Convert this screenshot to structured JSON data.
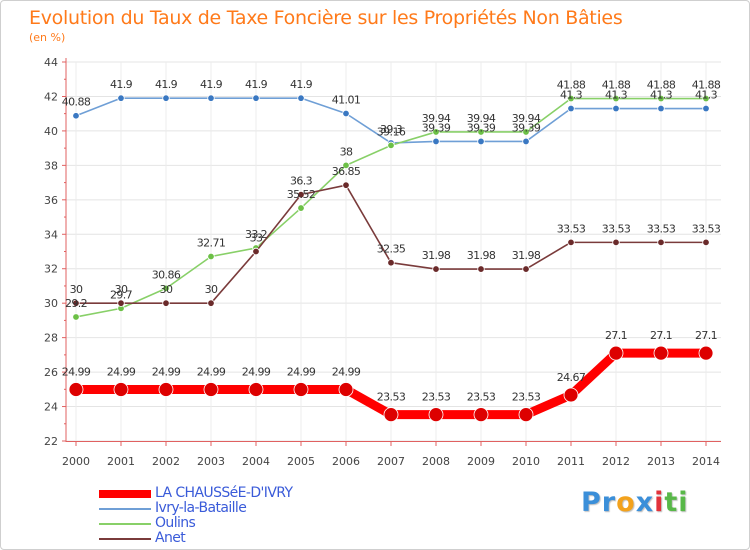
{
  "title": "Evolution du Taux de Taxe Foncière sur les Propriétés Non Bâties",
  "unit_label": "(en %)",
  "brand": {
    "letters": [
      "P",
      "r",
      "o",
      "x",
      "i",
      "t",
      "i"
    ],
    "colors": [
      "#3b8fd9",
      "#3b8fd9",
      "#f3a21c",
      "#3b8fd9",
      "#e2323a",
      "#58b848",
      "#58b848"
    ]
  },
  "chart_data": {
    "type": "line",
    "title": "Evolution du Taux de Taxe Foncière sur les Propriétés Non Bâties",
    "ylabel": "(en %)",
    "xlabel": "",
    "ylim": [
      22,
      44
    ],
    "yticks": [
      22,
      24,
      26,
      28,
      30,
      32,
      34,
      36,
      38,
      40,
      42,
      44
    ],
    "grid": true,
    "categories": [
      "2000",
      "2001",
      "2002",
      "2003",
      "2004",
      "2005",
      "2006",
      "2007",
      "2008",
      "2009",
      "2010",
      "2011",
      "2012",
      "2013",
      "2014"
    ],
    "series": [
      {
        "name": "LA CHAUSSéE-D'IVRY",
        "color": "#ff0000",
        "marker_color": "#dd0000",
        "emphasis": true,
        "values": [
          24.99,
          24.99,
          24.99,
          24.99,
          24.99,
          24.99,
          24.99,
          23.53,
          23.53,
          23.53,
          23.53,
          24.67,
          27.1,
          27.1,
          27.1
        ],
        "labels": [
          "24.99",
          "24.99",
          "24.99",
          "24.99",
          "24.99",
          "24.99",
          "24.99",
          "23.53",
          "23.53",
          "23.53",
          "23.53",
          "24.67",
          "27.1",
          "27.1",
          "27.1"
        ]
      },
      {
        "name": "Ivry-la-Bataille",
        "color": "#6f9fd6",
        "marker_color": "#3a78c2",
        "values": [
          40.88,
          41.9,
          41.9,
          41.9,
          41.9,
          41.9,
          41.01,
          39.3,
          39.39,
          39.39,
          39.39,
          41.3,
          41.3,
          41.3,
          41.3
        ],
        "labels": [
          "40.88",
          "41.9",
          "41.9",
          "41.9",
          "41.9",
          "41.9",
          "41.01",
          "39.3",
          "39.39",
          "39.39",
          "39.39",
          "41.3",
          "41.3",
          "41.3",
          "41.3"
        ]
      },
      {
        "name": "Oulins",
        "color": "#88d068",
        "marker_color": "#6cc046",
        "values": [
          29.2,
          29.7,
          30.86,
          32.71,
          33.2,
          35.52,
          38,
          39.16,
          39.94,
          39.94,
          39.94,
          41.88,
          41.88,
          41.88,
          41.88
        ],
        "labels": [
          "29.2",
          "29.7",
          "30.86",
          "32.71",
          "33.2",
          "35.52",
          "38",
          "39.16",
          "39.94",
          "39.94",
          "39.94",
          "41.88",
          "41.88",
          "41.88",
          "41.88"
        ]
      },
      {
        "name": "Anet",
        "color": "#7a3b3b",
        "marker_color": "#6a2a2a",
        "values": [
          30,
          30,
          30,
          30,
          33,
          36.3,
          36.85,
          32.35,
          31.98,
          31.98,
          31.98,
          33.53,
          33.53,
          33.53,
          33.53
        ],
        "labels": [
          "30",
          "30",
          "30",
          "30",
          "33",
          "36.3",
          "36.85",
          "32.35",
          "31.98",
          "31.98",
          "31.98",
          "33.53",
          "33.53",
          "33.53",
          "33.53"
        ]
      }
    ],
    "legend": "bottom-left"
  }
}
